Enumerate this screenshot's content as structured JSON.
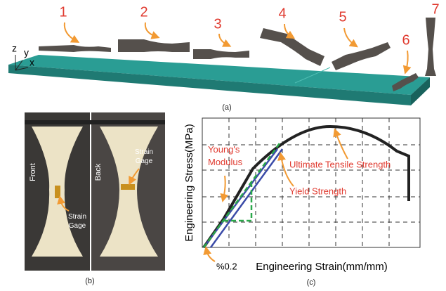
{
  "panel_a": {
    "labels": [
      "1",
      "2",
      "3",
      "4",
      "5",
      "6",
      "7"
    ],
    "axes": [
      "z",
      "y",
      "x"
    ],
    "caption": "(a)"
  },
  "panel_b": {
    "front": "Front",
    "back": "Back",
    "gage_front": [
      "Strain",
      "Gage"
    ],
    "gage_back": [
      "Strain",
      "Gage"
    ],
    "caption": "(b)"
  },
  "panel_c": {
    "y_label": "Engineering Stress(MPa)",
    "x_label": "Engineering Strain(mm/mm)",
    "youngs": [
      "Young's",
      "Modulus"
    ],
    "yield": "Yield Strength",
    "uts": "Ultimate Tensile Strength",
    "offset": "%0.2",
    "caption": "(c)"
  }
}
